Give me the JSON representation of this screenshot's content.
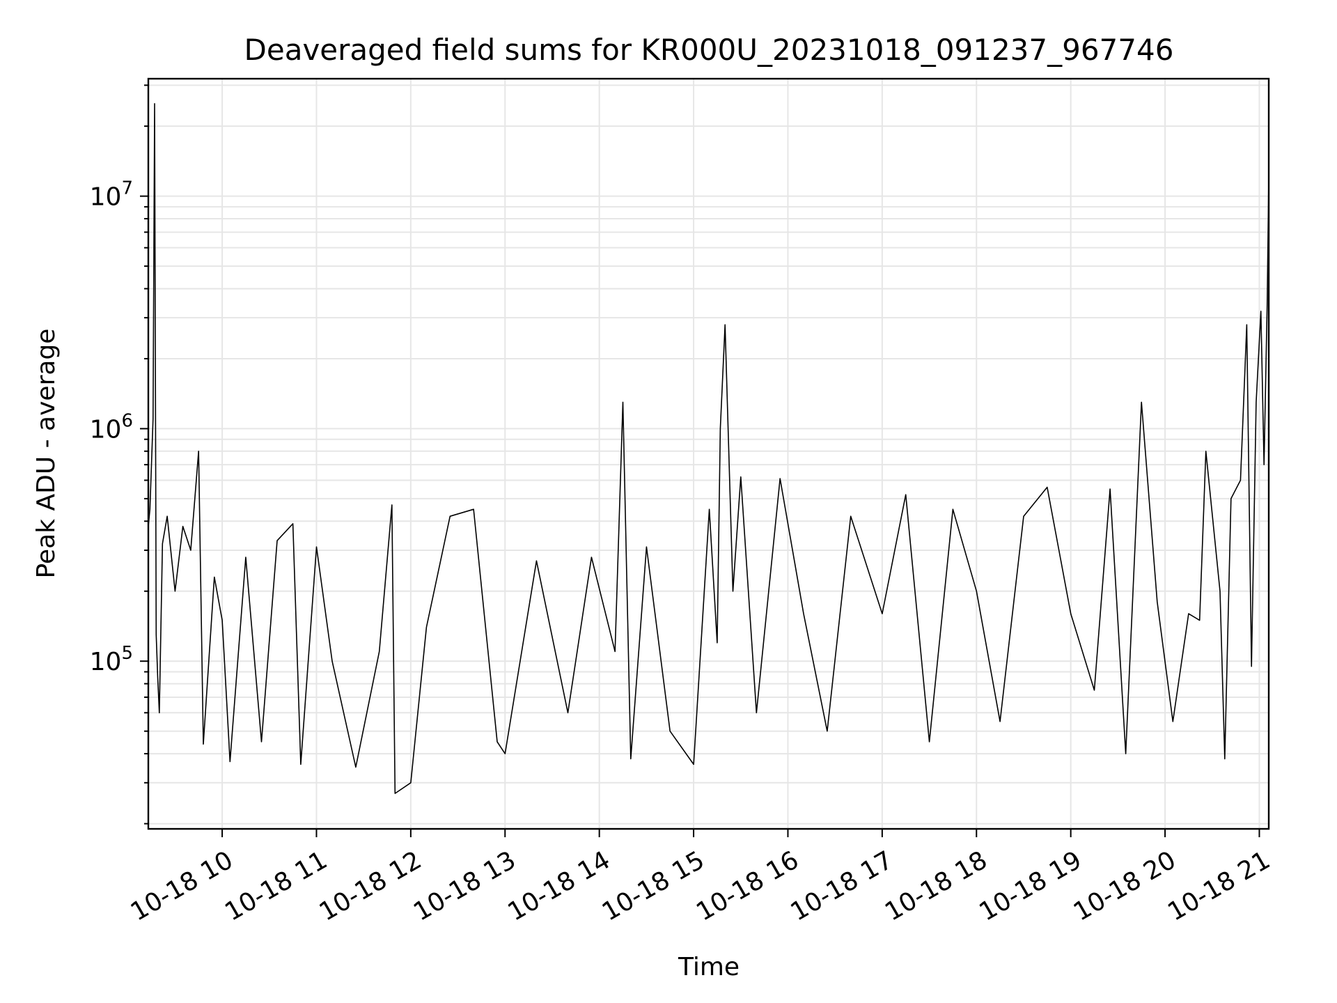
{
  "chart_data": {
    "type": "line",
    "title": "Deaveraged field sums for KR000U_20231018_091237_967746",
    "xlabel": "Time",
    "ylabel": "Peak ADU - average",
    "y_scale": "log",
    "xlim": [
      "2023-10-18 09:13",
      "2023-10-18 21:06"
    ],
    "ylim": [
      19000,
      32000000
    ],
    "x_ticks": [
      {
        "value": "2023-10-18 10:00",
        "label": "10-18 10"
      },
      {
        "value": "2023-10-18 11:00",
        "label": "10-18 11"
      },
      {
        "value": "2023-10-18 12:00",
        "label": "10-18 12"
      },
      {
        "value": "2023-10-18 13:00",
        "label": "10-18 13"
      },
      {
        "value": "2023-10-18 14:00",
        "label": "10-18 14"
      },
      {
        "value": "2023-10-18 15:00",
        "label": "10-18 15"
      },
      {
        "value": "2023-10-18 16:00",
        "label": "10-18 16"
      },
      {
        "value": "2023-10-18 17:00",
        "label": "10-18 17"
      },
      {
        "value": "2023-10-18 18:00",
        "label": "10-18 18"
      },
      {
        "value": "2023-10-18 19:00",
        "label": "10-18 19"
      },
      {
        "value": "2023-10-18 20:00",
        "label": "10-18 20"
      },
      {
        "value": "2023-10-18 21:00",
        "label": "10-18 21"
      }
    ],
    "y_ticks": [
      {
        "value": 100000,
        "base": "10",
        "exp": "5"
      },
      {
        "value": 1000000,
        "base": "10",
        "exp": "6"
      },
      {
        "value": 10000000,
        "base": "10",
        "exp": "7"
      }
    ],
    "grid": true,
    "line_color": "#000000",
    "grid_color": "#e6e6e6",
    "series": [
      {
        "name": "",
        "points": [
          [
            "2023-10-18 09:13",
            380000
          ],
          [
            "2023-10-18 09:14",
            450000
          ],
          [
            "2023-10-18 09:16",
            1100000
          ],
          [
            "2023-10-18 09:17",
            25000000
          ],
          [
            "2023-10-18 09:18",
            130000
          ],
          [
            "2023-10-18 09:19",
            85000
          ],
          [
            "2023-10-18 09:20",
            60000
          ],
          [
            "2023-10-18 09:22",
            320000
          ],
          [
            "2023-10-18 09:25",
            420000
          ],
          [
            "2023-10-18 09:30",
            200000
          ],
          [
            "2023-10-18 09:35",
            380000
          ],
          [
            "2023-10-18 09:40",
            300000
          ],
          [
            "2023-10-18 09:45",
            800000
          ],
          [
            "2023-10-18 09:48",
            44000
          ],
          [
            "2023-10-18 09:55",
            230000
          ],
          [
            "2023-10-18 10:00",
            150000
          ],
          [
            "2023-10-18 10:05",
            37000
          ],
          [
            "2023-10-18 10:15",
            280000
          ],
          [
            "2023-10-18 10:25",
            45000
          ],
          [
            "2023-10-18 10:35",
            330000
          ],
          [
            "2023-10-18 10:45",
            390000
          ],
          [
            "2023-10-18 10:50",
            36000
          ],
          [
            "2023-10-18 11:00",
            310000
          ],
          [
            "2023-10-18 11:10",
            100000
          ],
          [
            "2023-10-18 11:25",
            35000
          ],
          [
            "2023-10-18 11:40",
            110000
          ],
          [
            "2023-10-18 11:48",
            470000
          ],
          [
            "2023-10-18 11:50",
            27000
          ],
          [
            "2023-10-18 12:00",
            30000
          ],
          [
            "2023-10-18 12:10",
            140000
          ],
          [
            "2023-10-18 12:25",
            420000
          ],
          [
            "2023-10-18 12:40",
            450000
          ],
          [
            "2023-10-18 12:55",
            45000
          ],
          [
            "2023-10-18 13:00",
            40000
          ],
          [
            "2023-10-18 13:20",
            270000
          ],
          [
            "2023-10-18 13:40",
            60000
          ],
          [
            "2023-10-18 13:55",
            280000
          ],
          [
            "2023-10-18 14:10",
            110000
          ],
          [
            "2023-10-18 14:15",
            1300000
          ],
          [
            "2023-10-18 14:20",
            38000
          ],
          [
            "2023-10-18 14:30",
            310000
          ],
          [
            "2023-10-18 14:45",
            50000
          ],
          [
            "2023-10-18 15:00",
            36000
          ],
          [
            "2023-10-18 15:10",
            450000
          ],
          [
            "2023-10-18 15:15",
            120000
          ],
          [
            "2023-10-18 15:17",
            1000000
          ],
          [
            "2023-10-18 15:20",
            2800000
          ],
          [
            "2023-10-18 15:25",
            200000
          ],
          [
            "2023-10-18 15:30",
            620000
          ],
          [
            "2023-10-18 15:40",
            60000
          ],
          [
            "2023-10-18 15:55",
            610000
          ],
          [
            "2023-10-18 16:10",
            160000
          ],
          [
            "2023-10-18 16:25",
            50000
          ],
          [
            "2023-10-18 16:40",
            420000
          ],
          [
            "2023-10-18 17:00",
            160000
          ],
          [
            "2023-10-18 17:15",
            520000
          ],
          [
            "2023-10-18 17:30",
            45000
          ],
          [
            "2023-10-18 17:45",
            450000
          ],
          [
            "2023-10-18 18:00",
            200000
          ],
          [
            "2023-10-18 18:15",
            55000
          ],
          [
            "2023-10-18 18:30",
            420000
          ],
          [
            "2023-10-18 18:45",
            560000
          ],
          [
            "2023-10-18 19:00",
            160000
          ],
          [
            "2023-10-18 19:15",
            75000
          ],
          [
            "2023-10-18 19:25",
            550000
          ],
          [
            "2023-10-18 19:35",
            40000
          ],
          [
            "2023-10-18 19:45",
            1300000
          ],
          [
            "2023-10-18 19:55",
            180000
          ],
          [
            "2023-10-18 20:05",
            55000
          ],
          [
            "2023-10-18 20:15",
            160000
          ],
          [
            "2023-10-18 20:22",
            150000
          ],
          [
            "2023-10-18 20:26",
            800000
          ],
          [
            "2023-10-18 20:35",
            200000
          ],
          [
            "2023-10-18 20:38",
            38000
          ],
          [
            "2023-10-18 20:42",
            500000
          ],
          [
            "2023-10-18 20:48",
            600000
          ],
          [
            "2023-10-18 20:52",
            2800000
          ],
          [
            "2023-10-18 20:55",
            95000
          ],
          [
            "2023-10-18 20:58",
            1300000
          ],
          [
            "2023-10-18 21:01",
            3200000
          ],
          [
            "2023-10-18 21:03",
            700000
          ],
          [
            "2023-10-18 21:05",
            3400000
          ],
          [
            "2023-10-18 21:06",
            12000000
          ]
        ]
      }
    ]
  }
}
